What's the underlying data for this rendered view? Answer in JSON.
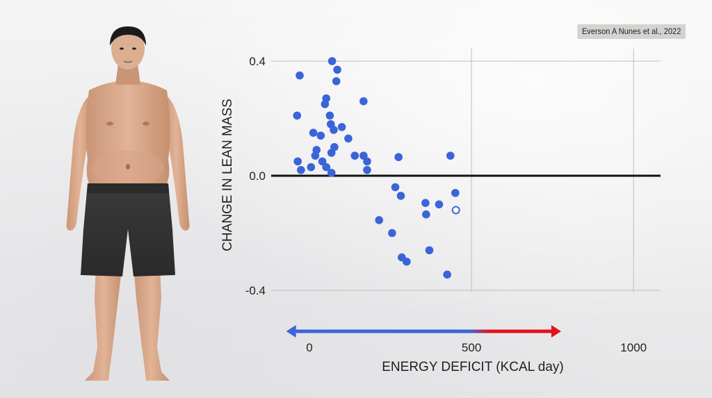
{
  "citation": "Everson A Nunes et al., 2022",
  "colors": {
    "point": "#3a64d8",
    "zero_line": "#111111",
    "grid": "#bdbdbd",
    "arrow_blue": "#3a64d8",
    "arrow_red": "#e3121b"
  },
  "chart_data": {
    "type": "scatter",
    "xlabel": "ENERGY DEFICIT (KCAL day)",
    "ylabel": "CHANGE IN LEAN MASS",
    "xlim": [
      -120,
      1080
    ],
    "ylim": [
      -0.45,
      0.45
    ],
    "x_ticks": [
      0,
      500,
      1000
    ],
    "x_tick_labels": [
      "0",
      "500",
      "1000"
    ],
    "y_ticks": [
      0.4,
      0.0,
      -0.4
    ],
    "y_tick_labels": [
      "0.4",
      "0.0",
      "-0.4"
    ],
    "grid": true,
    "points": [
      {
        "x": -38,
        "y": 0.21
      },
      {
        "x": -30,
        "y": 0.35
      },
      {
        "x": -36,
        "y": 0.05
      },
      {
        "x": -26,
        "y": 0.02
      },
      {
        "x": 5,
        "y": 0.03
      },
      {
        "x": 12,
        "y": 0.15
      },
      {
        "x": 18,
        "y": 0.07
      },
      {
        "x": 22,
        "y": 0.09
      },
      {
        "x": 35,
        "y": 0.14
      },
      {
        "x": 40,
        "y": 0.05
      },
      {
        "x": 48,
        "y": 0.25
      },
      {
        "x": 52,
        "y": 0.27
      },
      {
        "x": 52,
        "y": 0.03
      },
      {
        "x": 63,
        "y": 0.21
      },
      {
        "x": 66,
        "y": 0.18
      },
      {
        "x": 68,
        "y": 0.08
      },
      {
        "x": 70,
        "y": 0.4
      },
      {
        "x": 68,
        "y": 0.01
      },
      {
        "x": 75,
        "y": 0.16
      },
      {
        "x": 77,
        "y": 0.1
      },
      {
        "x": 83,
        "y": 0.33
      },
      {
        "x": 86,
        "y": 0.37
      },
      {
        "x": 100,
        "y": 0.17
      },
      {
        "x": 120,
        "y": 0.13
      },
      {
        "x": 140,
        "y": 0.07
      },
      {
        "x": 167,
        "y": 0.26
      },
      {
        "x": 167,
        "y": 0.07
      },
      {
        "x": 178,
        "y": 0.05
      },
      {
        "x": 178,
        "y": 0.02
      },
      {
        "x": 215,
        "y": -0.155
      },
      {
        "x": 255,
        "y": -0.2
      },
      {
        "x": 265,
        "y": -0.04
      },
      {
        "x": 275,
        "y": 0.065
      },
      {
        "x": 282,
        "y": -0.07
      },
      {
        "x": 285,
        "y": -0.285
      },
      {
        "x": 300,
        "y": -0.3
      },
      {
        "x": 358,
        "y": -0.095
      },
      {
        "x": 360,
        "y": -0.135
      },
      {
        "x": 370,
        "y": -0.26
      },
      {
        "x": 400,
        "y": -0.1
      },
      {
        "x": 425,
        "y": -0.345
      },
      {
        "x": 435,
        "y": 0.07
      },
      {
        "x": 450,
        "y": -0.06
      },
      {
        "x": 452,
        "y": -0.12,
        "open": true
      }
    ],
    "arrow_range": [
      -50,
      755
    ],
    "arrow_gradient_start": 500
  }
}
